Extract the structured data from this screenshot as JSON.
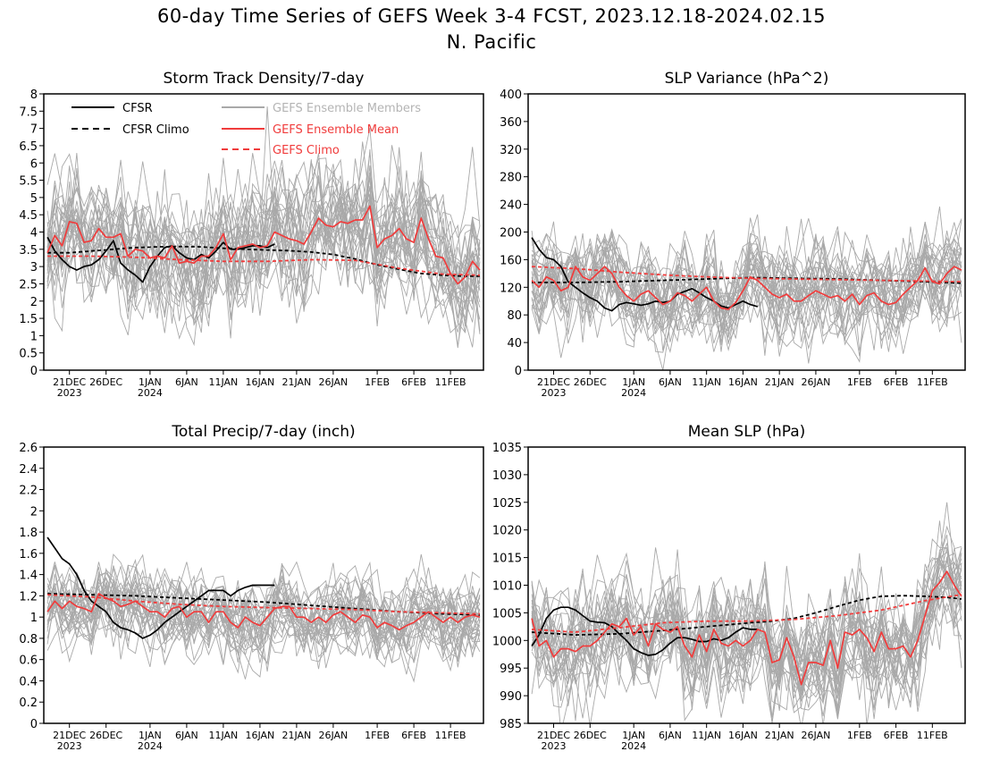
{
  "page": {
    "title": "60-day Time Series of GEFS Week 3-4 FCST, 2023.12.18-2024.02.15",
    "subtitle": "N. Pacific"
  },
  "legend": {
    "cfsr": "CFSR",
    "cfsr_climo": "CFSR Climo",
    "members": "GEFS Ensemble Members",
    "mean": "GEFS Ensemble Mean",
    "gefs_climo": "GEFS Climo"
  },
  "colors": {
    "cfsr": "#000000",
    "members": "#a9a9a9",
    "mean": "#f03c3c",
    "legend_members_text": "#b4b4b4",
    "axis": "#000000"
  },
  "x_axis": {
    "tick_labels": [
      "21DEC",
      "26DEC",
      "1JAN",
      "6JAN",
      "11JAN",
      "16JAN",
      "21JAN",
      "26JAN",
      "1FEB",
      "6FEB",
      "11FEB"
    ],
    "tick_day_index": [
      3,
      8,
      14,
      19,
      24,
      29,
      34,
      39,
      45,
      50,
      55
    ],
    "year_labels": [
      "2023",
      "2024"
    ],
    "year_day_index": [
      3,
      14
    ],
    "start_date": "2023-12-18",
    "n_days": 60
  },
  "chart_data": [
    {
      "type": "line",
      "title": "Storm Track Density/7-day",
      "ylim": [
        0,
        8
      ],
      "yticks": [
        "0",
        "0.5",
        "1",
        "1.5",
        "2",
        "2.5",
        "3",
        "3.5",
        "4",
        "4.5",
        "5",
        "5.5",
        "6",
        "6.5",
        "7",
        "7.5",
        "8"
      ],
      "ytick_values": [
        0,
        0.5,
        1,
        1.5,
        2,
        2.5,
        3,
        3.5,
        4,
        4.5,
        5,
        5.5,
        6,
        6.5,
        7,
        7.5,
        8
      ],
      "legend": true,
      "members": {
        "count": 30,
        "seed": 11,
        "spread": 0.85,
        "mean_pull": 0.45
      },
      "series": [
        {
          "name": "CFSR",
          "style": "solid",
          "x": [
            0,
            1,
            2,
            3,
            4,
            5,
            6,
            7,
            8,
            9,
            10,
            11,
            12,
            13,
            14,
            15,
            16,
            17,
            18,
            19,
            20,
            21,
            22,
            23,
            24,
            25,
            26,
            27,
            28,
            29,
            30,
            31
          ],
          "values": [
            3.85,
            3.45,
            3.2,
            3.0,
            2.9,
            3.0,
            3.05,
            3.2,
            3.45,
            3.75,
            3.1,
            2.9,
            2.75,
            2.55,
            3.0,
            3.3,
            3.55,
            3.6,
            3.4,
            3.25,
            3.2,
            3.35,
            3.25,
            3.45,
            3.7,
            3.5,
            3.5,
            3.55,
            3.6,
            3.6,
            3.55,
            3.65
          ]
        },
        {
          "name": "CFSR Climo",
          "style": "dashed",
          "x": [
            0,
            3,
            6,
            9,
            12,
            15,
            18,
            21,
            24,
            27,
            30,
            33,
            36,
            39,
            42,
            45,
            48,
            51,
            54,
            57,
            59
          ],
          "values": [
            3.4,
            3.4,
            3.45,
            3.5,
            3.55,
            3.57,
            3.58,
            3.57,
            3.53,
            3.5,
            3.48,
            3.46,
            3.42,
            3.35,
            3.22,
            3.05,
            2.92,
            2.8,
            2.75,
            2.72,
            2.72
          ]
        },
        {
          "name": "GEFS Ensemble Mean",
          "style": "solid",
          "values": [
            3.4,
            3.9,
            3.6,
            4.3,
            4.25,
            3.7,
            3.75,
            4.1,
            3.85,
            3.85,
            3.95,
            3.3,
            3.5,
            3.45,
            3.25,
            3.3,
            3.25,
            3.6,
            3.1,
            3.15,
            3.1,
            3.3,
            3.3,
            3.55,
            3.95,
            3.2,
            3.55,
            3.6,
            3.65,
            3.55,
            3.6,
            4.0,
            3.9,
            3.8,
            3.75,
            3.65,
            4.0,
            4.4,
            4.2,
            4.15,
            4.3,
            4.25,
            4.35,
            4.35,
            4.75,
            3.55,
            3.8,
            3.9,
            4.1,
            3.8,
            3.7,
            4.4,
            3.8,
            3.3,
            3.25,
            2.8,
            2.5,
            2.7,
            3.15,
            2.9
          ]
        },
        {
          "name": "GEFS Climo",
          "style": "dashed",
          "x": [
            0,
            6,
            12,
            18,
            24,
            30,
            36,
            42,
            48,
            54,
            59
          ],
          "values": [
            3.3,
            3.3,
            3.27,
            3.2,
            3.15,
            3.15,
            3.2,
            3.18,
            2.95,
            2.78,
            2.75
          ]
        }
      ]
    },
    {
      "type": "line",
      "title": "SLP Variance (hPa^2)",
      "ylim": [
        0,
        400
      ],
      "yticks": [
        "0",
        "40",
        "80",
        "120",
        "160",
        "200",
        "240",
        "280",
        "320",
        "360",
        "400"
      ],
      "ytick_values": [
        0,
        40,
        80,
        120,
        160,
        200,
        240,
        280,
        320,
        360,
        400
      ],
      "legend": false,
      "members": {
        "count": 30,
        "seed": 23,
        "spread": 32,
        "mean_pull": 0.5
      },
      "series": [
        {
          "name": "CFSR",
          "style": "solid",
          "x": [
            0,
            1,
            2,
            3,
            4,
            5,
            6,
            7,
            8,
            9,
            10,
            11,
            12,
            13,
            14,
            15,
            16,
            17,
            18,
            19,
            20,
            21,
            22,
            23,
            24,
            25,
            26,
            27,
            28,
            29,
            30,
            31
          ],
          "values": [
            192,
            175,
            163,
            160,
            150,
            128,
            120,
            112,
            105,
            100,
            90,
            86,
            95,
            98,
            96,
            94,
            96,
            100,
            98,
            100,
            110,
            114,
            118,
            112,
            105,
            100,
            93,
            90,
            95,
            100,
            95,
            92
          ]
        },
        {
          "name": "CFSR Climo",
          "style": "dashed",
          "x": [
            0,
            6,
            12,
            18,
            24,
            30,
            36,
            42,
            48,
            54,
            59
          ],
          "values": [
            127,
            127,
            128,
            130,
            132,
            134,
            133,
            132,
            130,
            128,
            126
          ]
        },
        {
          "name": "GEFS Ensemble Mean",
          "style": "solid",
          "values": [
            130,
            120,
            135,
            130,
            115,
            120,
            150,
            135,
            130,
            140,
            150,
            140,
            120,
            108,
            100,
            110,
            115,
            105,
            95,
            100,
            112,
            108,
            100,
            110,
            120,
            100,
            90,
            88,
            98,
            115,
            135,
            130,
            120,
            110,
            105,
            110,
            100,
            100,
            108,
            115,
            110,
            105,
            108,
            100,
            110,
            95,
            108,
            112,
            100,
            95,
            98,
            110,
            120,
            130,
            148,
            128,
            125,
            140,
            150,
            145
          ]
        },
        {
          "name": "GEFS Climo",
          "style": "dashed",
          "x": [
            0,
            6,
            12,
            18,
            24,
            30,
            36,
            42,
            48,
            54,
            59
          ],
          "values": [
            150,
            147,
            142,
            138,
            135,
            133,
            132,
            131,
            130,
            129,
            128
          ]
        }
      ]
    },
    {
      "type": "line",
      "title": "Total Precip/7-day (inch)",
      "ylim": [
        0,
        2.6
      ],
      "yticks": [
        "0",
        "0.2",
        "0.4",
        "0.6",
        "0.8",
        "1",
        "1.2",
        "1.4",
        "1.6",
        "1.8",
        "2",
        "2.2",
        "2.4",
        "2.6"
      ],
      "ytick_values": [
        0,
        0.2,
        0.4,
        0.6,
        0.8,
        1.0,
        1.2,
        1.4,
        1.6,
        1.8,
        2.0,
        2.2,
        2.4,
        2.6
      ],
      "legend": false,
      "members": {
        "count": 30,
        "seed": 37,
        "spread": 0.17,
        "mean_pull": 0.45
      },
      "series": [
        {
          "name": "CFSR",
          "style": "solid",
          "x": [
            0,
            1,
            2,
            3,
            4,
            5,
            6,
            7,
            8,
            9,
            10,
            11,
            12,
            13,
            14,
            15,
            16,
            17,
            18,
            19,
            20,
            21,
            22,
            23,
            24,
            25,
            26,
            27,
            28,
            29,
            30,
            31
          ],
          "values": [
            1.75,
            1.65,
            1.55,
            1.5,
            1.4,
            1.25,
            1.15,
            1.1,
            1.05,
            0.95,
            0.9,
            0.88,
            0.85,
            0.8,
            0.83,
            0.88,
            0.95,
            1.0,
            1.05,
            1.1,
            1.15,
            1.2,
            1.25,
            1.25,
            1.25,
            1.2,
            1.25,
            1.28,
            1.3,
            1.3,
            1.3,
            1.3
          ]
        },
        {
          "name": "CFSR Climo",
          "style": "dashed",
          "x": [
            0,
            6,
            12,
            18,
            24,
            30,
            36,
            42,
            48,
            54,
            59
          ],
          "values": [
            1.22,
            1.21,
            1.2,
            1.18,
            1.16,
            1.14,
            1.11,
            1.08,
            1.05,
            1.03,
            1.02
          ]
        },
        {
          "name": "GEFS Ensemble Mean",
          "style": "solid",
          "values": [
            1.05,
            1.15,
            1.08,
            1.15,
            1.1,
            1.08,
            1.05,
            1.22,
            1.18,
            1.15,
            1.1,
            1.12,
            1.15,
            1.1,
            1.05,
            1.05,
            1.0,
            1.08,
            1.1,
            1.0,
            1.05,
            1.05,
            0.95,
            1.05,
            1.05,
            0.95,
            0.9,
            1.0,
            0.95,
            0.92,
            1.0,
            1.08,
            1.1,
            1.1,
            1.0,
            1.0,
            0.95,
            1.0,
            0.95,
            1.02,
            1.05,
            1.0,
            0.95,
            1.02,
            1.0,
            0.9,
            0.95,
            0.92,
            0.88,
            0.92,
            0.95,
            1.0,
            1.05,
            1.0,
            0.95,
            1.0,
            0.95,
            1.0,
            1.02,
            1.0
          ]
        },
        {
          "name": "GEFS Climo",
          "style": "dashed",
          "x": [
            0,
            6,
            12,
            18,
            24,
            30,
            36,
            42,
            48,
            54,
            59
          ],
          "values": [
            1.21,
            1.19,
            1.15,
            1.12,
            1.1,
            1.09,
            1.08,
            1.07,
            1.05,
            1.04,
            1.03
          ]
        }
      ]
    },
    {
      "type": "line",
      "title": "Mean SLP (hPa)",
      "ylim": [
        985,
        1035
      ],
      "yticks": [
        "985",
        "990",
        "995",
        "1000",
        "1005",
        "1010",
        "1015",
        "1020",
        "1025",
        "1030",
        "1035"
      ],
      "ytick_values": [
        985,
        990,
        995,
        1000,
        1005,
        1010,
        1015,
        1020,
        1025,
        1030,
        1035
      ],
      "legend": false,
      "members": {
        "count": 30,
        "seed": 53,
        "spread": 4.8,
        "mean_pull": 0.4
      },
      "series": [
        {
          "name": "CFSR",
          "style": "solid",
          "x": [
            0,
            1,
            2,
            3,
            4,
            5,
            6,
            7,
            8,
            9,
            10,
            11,
            12,
            13,
            14,
            15,
            16,
            17,
            18,
            19,
            20,
            21,
            22,
            23,
            24,
            25,
            26,
            27,
            28,
            29,
            30,
            31
          ],
          "values": [
            999,
            1001,
            1004,
            1005.5,
            1006,
            1006,
            1005.5,
            1004.5,
            1003.5,
            1003.3,
            1003.2,
            1002.5,
            1001.2,
            1000,
            998.5,
            997.8,
            997.3,
            997.5,
            998.3,
            999.5,
            1000.5,
            1000.5,
            1000.2,
            999.8,
            999.8,
            1000.3,
            1000,
            1000.5,
            1001.5,
            1002.3,
            1002,
            1002
          ]
        },
        {
          "name": "CFSR Climo",
          "style": "dashed",
          "x": [
            0,
            6,
            12,
            18,
            24,
            30,
            33,
            36,
            39,
            42,
            45,
            48,
            51,
            54,
            57,
            59
          ],
          "values": [
            1001.5,
            1001,
            1001.2,
            1001.8,
            1002.5,
            1003.2,
            1003.5,
            1004,
            1005,
            1006.2,
            1007.3,
            1008,
            1008.1,
            1008,
            1007.8,
            1007.5
          ]
        },
        {
          "name": "GEFS Ensemble Mean",
          "style": "solid",
          "values": [
            1004,
            999,
            1000,
            997,
            998.5,
            998.5,
            998,
            999,
            999,
            1000,
            1001.5,
            1003,
            1002.5,
            1004,
            1001,
            1002.5,
            999,
            1003,
            1002,
            1001.5,
            1002.5,
            999,
            997,
            1001,
            998,
            1002,
            999.5,
            999,
            1000,
            999,
            1000,
            1002,
            1001.5,
            996,
            996.5,
            1000.5,
            997,
            992,
            996,
            996,
            995.5,
            1000,
            995,
            1001.5,
            1001,
            1002,
            1000.5,
            998,
            1001.5,
            998.5,
            998.5,
            999,
            997,
            1000,
            1004.5,
            1009,
            1010.5,
            1012.5,
            1010,
            1008
          ]
        },
        {
          "name": "GEFS Climo",
          "style": "dashed",
          "x": [
            0,
            6,
            12,
            18,
            24,
            30,
            36,
            42,
            48,
            54,
            59
          ],
          "values": [
            1002,
            1001.5,
            1002.3,
            1003.2,
            1003.5,
            1003.5,
            1003.8,
            1004.5,
            1005.5,
            1007.2,
            1008.3
          ]
        }
      ]
    }
  ]
}
